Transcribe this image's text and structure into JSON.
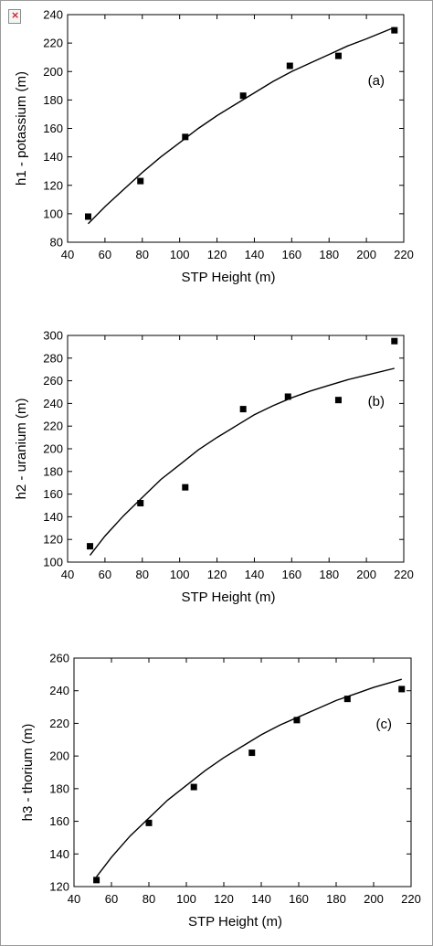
{
  "broken_image_glyph": "×",
  "icon": "broken-image-icon",
  "colors": {
    "marker": "#000000",
    "curve": "#000000",
    "axis": "#000000"
  },
  "chart_data": [
    {
      "type": "scatter",
      "panel_label": "(a)",
      "xlabel": "STP Height (m)",
      "ylabel": "h1 - potassium (m)",
      "xlim": [
        40,
        220
      ],
      "ylim": [
        80,
        240
      ],
      "xticks": [
        40,
        60,
        80,
        100,
        120,
        140,
        160,
        180,
        200,
        220
      ],
      "yticks": [
        80,
        100,
        120,
        140,
        160,
        180,
        200,
        220,
        240
      ],
      "grid": false,
      "points": {
        "x": [
          51,
          79,
          103,
          134,
          159,
          185,
          215
        ],
        "y": [
          98,
          123,
          154,
          183,
          204,
          211,
          229
        ]
      },
      "fit": {
        "x": [
          51,
          60,
          70,
          80,
          90,
          100,
          110,
          120,
          130,
          140,
          150,
          160,
          170,
          180,
          190,
          200,
          215
        ],
        "y": [
          93,
          105,
          117,
          129,
          140,
          150,
          160,
          169,
          177,
          185,
          193,
          200,
          206,
          212,
          218,
          223,
          231
        ]
      }
    },
    {
      "type": "scatter",
      "panel_label": "(b)",
      "xlabel": "STP Height (m)",
      "ylabel": "h2 - uranium (m)",
      "xlim": [
        40,
        220
      ],
      "ylim": [
        100,
        300
      ],
      "xticks": [
        40,
        60,
        80,
        100,
        120,
        140,
        160,
        180,
        200,
        220
      ],
      "yticks": [
        100,
        120,
        140,
        160,
        180,
        200,
        220,
        240,
        260,
        280,
        300
      ],
      "grid": false,
      "points": {
        "x": [
          52,
          79,
          103,
          134,
          158,
          185,
          215
        ],
        "y": [
          114,
          152,
          166,
          235,
          246,
          243,
          295
        ]
      },
      "fit": {
        "x": [
          52,
          60,
          70,
          80,
          90,
          100,
          110,
          120,
          130,
          140,
          150,
          160,
          170,
          180,
          190,
          200,
          215
        ],
        "y": [
          106,
          123,
          141,
          157,
          173,
          186,
          199,
          210,
          220,
          230,
          238,
          245,
          251,
          256,
          261,
          265,
          271
        ]
      }
    },
    {
      "type": "scatter",
      "panel_label": "(c)",
      "xlabel": "STP Height (m)",
      "ylabel": "h3 - thorium (m)",
      "xlim": [
        40,
        220
      ],
      "ylim": [
        120,
        260
      ],
      "xticks": [
        40,
        60,
        80,
        100,
        120,
        140,
        160,
        180,
        200,
        220
      ],
      "yticks": [
        120,
        140,
        160,
        180,
        200,
        220,
        240,
        260
      ],
      "grid": false,
      "points": {
        "x": [
          52,
          80,
          104,
          135,
          159,
          186,
          215
        ],
        "y": [
          124,
          159,
          181,
          202,
          222,
          235,
          241
        ]
      },
      "fit": {
        "x": [
          52,
          60,
          70,
          80,
          90,
          100,
          110,
          120,
          130,
          140,
          150,
          160,
          170,
          180,
          190,
          200,
          215
        ],
        "y": [
          126,
          138,
          151,
          162,
          173,
          182,
          191,
          199,
          206,
          213,
          219,
          224,
          229,
          234,
          238,
          242,
          247
        ]
      }
    }
  ]
}
